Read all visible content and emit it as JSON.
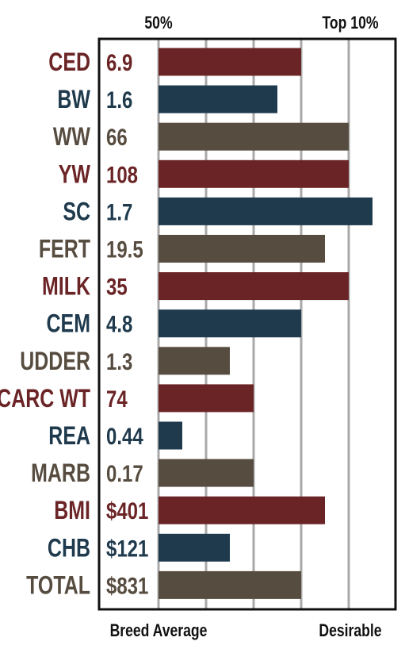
{
  "chart_data": {
    "type": "bar",
    "orientation": "horizontal",
    "top_labels": [
      "50%",
      "Top 10%"
    ],
    "bottom_labels": [
      "Breed Average",
      "Desirable"
    ],
    "categories": [
      "CED",
      "BW",
      "WW",
      "YW",
      "SC",
      "FERT",
      "MILK",
      "CEM",
      "UDDER",
      "CARC WT",
      "REA",
      "MARB",
      "BMI",
      "CHB",
      "TOTAL"
    ],
    "value_labels": [
      "6.9",
      "1.6",
      "66",
      "108",
      "1.7",
      "19.5",
      "35",
      "4.8",
      "1.3",
      "74",
      "0.44",
      "0.17",
      "$401",
      "$121",
      "$831"
    ],
    "values": [
      3,
      2.5,
      4,
      4,
      4.5,
      3.5,
      4,
      3,
      1.5,
      2,
      0.5,
      2,
      3.5,
      1.5,
      3
    ],
    "xlim": [
      0,
      5
    ],
    "grid": true,
    "bar_colors": [
      "#6b2426",
      "#1f3a4d",
      "#574c40",
      "#6b2426",
      "#1f3a4d",
      "#574c40",
      "#6b2426",
      "#1f3a4d",
      "#574c40",
      "#6b2426",
      "#1f3a4d",
      "#574c40",
      "#6b2426",
      "#1f3a4d",
      "#574c40"
    ]
  },
  "colors": {
    "red": "#6b2426",
    "blue": "#1f3a4d",
    "brown": "#574c40",
    "grid": "#a9a9a9",
    "frame": "#111111"
  }
}
